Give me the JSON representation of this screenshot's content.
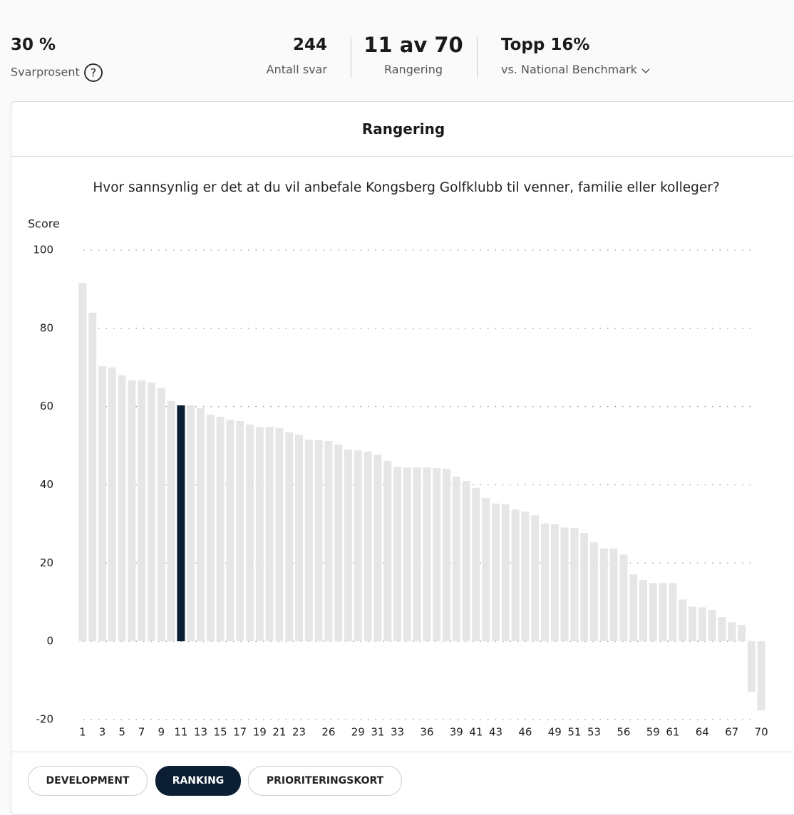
{
  "header": {
    "stats": [
      {
        "value": "30 %",
        "label": "Svarprosent"
      },
      {
        "value": "244",
        "label": "Antall svar"
      },
      {
        "value": "11 av 70",
        "label": "Rangering"
      },
      {
        "value": "Topp 16%",
        "label": "vs. National Benchmark"
      }
    ]
  },
  "card": {
    "title": "Rangering"
  },
  "chart_data": {
    "type": "bar",
    "title": "Hvor sannsynlig er det at du vil anbefale Kongsberg Golfklubb til venner, familie eller kolleger?",
    "y_label": "Score",
    "categories": [
      1,
      null,
      3,
      null,
      5,
      null,
      7,
      null,
      9,
      null,
      11,
      null,
      13,
      null,
      15,
      null,
      17,
      null,
      19,
      null,
      21,
      null,
      23,
      null,
      null,
      26,
      null,
      null,
      29,
      null,
      31,
      null,
      33,
      null,
      null,
      36,
      null,
      null,
      39,
      null,
      41,
      null,
      43,
      null,
      null,
      46,
      null,
      null,
      49,
      null,
      51,
      null,
      53,
      null,
      null,
      56,
      null,
      null,
      59,
      null,
      61,
      null,
      null,
      64,
      null,
      null,
      67,
      null,
      null,
      70
    ],
    "values": [
      91.6,
      84,
      70.3,
      70,
      68,
      66.7,
      66.7,
      66.1,
      64.8,
      61.4,
      60.3,
      60.3,
      59.6,
      57.9,
      57.4,
      56.6,
      56.3,
      55.4,
      54.8,
      54.8,
      54.5,
      53.4,
      52.8,
      51.5,
      51.4,
      51.2,
      50.3,
      49,
      48.8,
      48.5,
      47.7,
      46.1,
      44.6,
      44.4,
      44.4,
      44.4,
      44.3,
      44.1,
      42.1,
      41,
      39.2,
      36.6,
      35.2,
      35,
      33.7,
      33.2,
      32.2,
      30.1,
      29.9,
      29.1,
      29,
      27.7,
      25.3,
      23.7,
      23.7,
      22.2,
      17.1,
      15.7,
      14.9,
      14.9,
      14.9,
      10.7,
      8.9,
      8.7,
      8,
      6.2,
      4.9,
      4.2,
      -12.9,
      -17.7
    ],
    "color": "#e6e6e6",
    "highlight_color": "#0b1e33",
    "highlight_index": 10,
    "ylim": [
      -20,
      100
    ],
    "yticks": [
      -20,
      0,
      20,
      40,
      60,
      80,
      100
    ],
    "grid": true
  },
  "tabs": [
    "DEVELOPMENT",
    "RANKING",
    "PRIORITERINGSKORT"
  ],
  "active_tab": 1
}
